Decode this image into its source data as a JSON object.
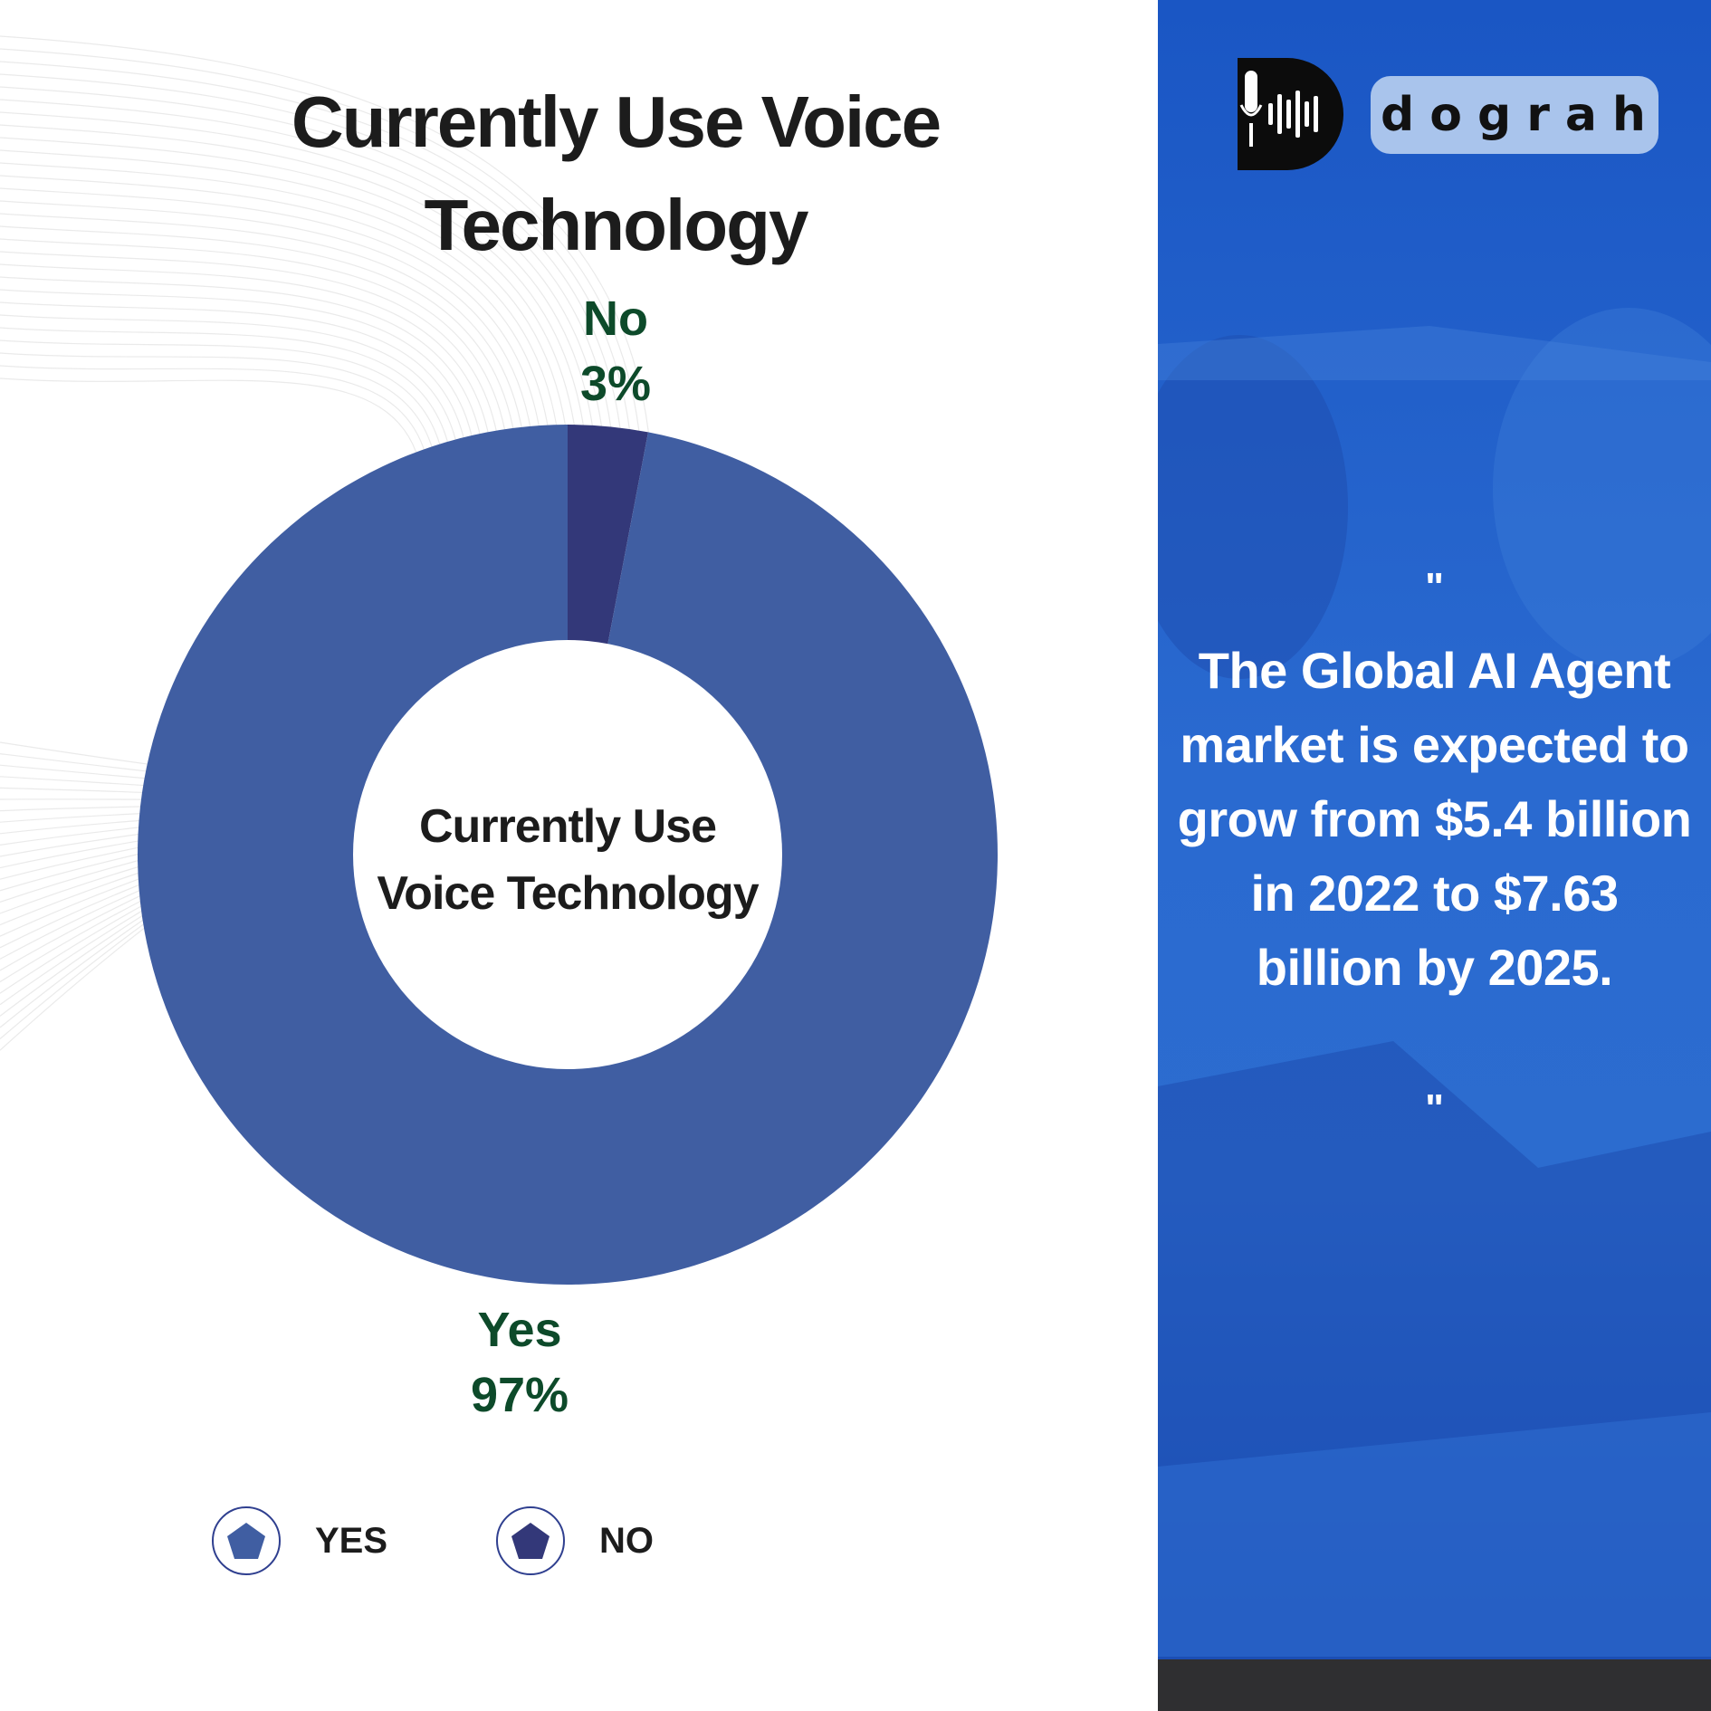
{
  "colors": {
    "yes_slice": "#405ea2",
    "no_slice": "#333879",
    "label_green": "#0d4a2a",
    "panel_blue": "#2a6ad0"
  },
  "chart_data": {
    "type": "pie",
    "title": "Currently Use Voice Technology",
    "center_label_lines": [
      "Currently Use",
      "Voice Technology"
    ],
    "categories": [
      "Yes",
      "No"
    ],
    "values": [
      97,
      3
    ],
    "value_labels": [
      "97%",
      "3%"
    ],
    "legend": {
      "position": "bottom",
      "entries": [
        "YES",
        "NO"
      ],
      "icon": "pentagon-icon"
    }
  },
  "brand": {
    "logo_icon": "microphone-soundwave-icon",
    "name": "dograh"
  },
  "quote": {
    "open_mark": "\"",
    "text": "The Global AI Agent market is expected to grow from $5.4 billion in 2022 to $7.63 billion by 2025.",
    "close_mark": "\""
  }
}
